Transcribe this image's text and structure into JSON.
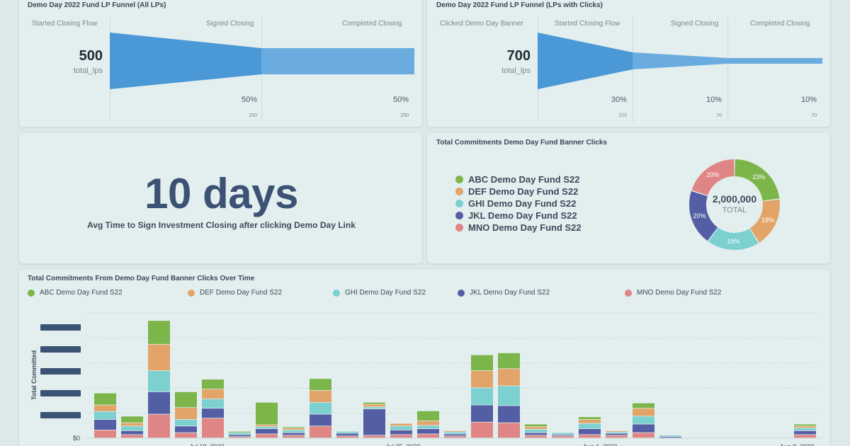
{
  "funnel_all": {
    "title": "Demo Day 2022 Fund LP Funnel (All LPs)",
    "big_value": "500",
    "big_label": "total_lps",
    "stages": [
      {
        "label": "Started Closing Flow",
        "pct": "",
        "count": "",
        "value": 500
      },
      {
        "label": "Signed Closing",
        "pct": "50%",
        "count": "250",
        "value": 250
      },
      {
        "label": "Completed Closing",
        "pct": "50%",
        "count": "250",
        "value": 250
      }
    ]
  },
  "funnel_clicks": {
    "title": "Demo Day 2022 Fund LP Funnel (LPs with Clicks)",
    "big_value": "700",
    "big_label": "total_lps",
    "stages": [
      {
        "label": "Clicked Demo Day Banner",
        "pct": "",
        "count": "",
        "value": 700
      },
      {
        "label": "Started Closing Flow",
        "pct": "30%",
        "count": "210",
        "value": 210
      },
      {
        "label": "Signed Closing",
        "pct": "10%",
        "count": "70",
        "value": 70
      },
      {
        "label": "Completed Closing",
        "pct": "10%",
        "count": "70",
        "value": 70
      }
    ]
  },
  "avg_time": {
    "value": "10 days",
    "label": "Avg Time to Sign Investment Closing after clicking Demo Day Link"
  },
  "donut": {
    "title": "Total Commitments Demo Day Fund Banner Clicks",
    "total_value": "2,000,000",
    "total_label": "TOTAL",
    "legend": [
      {
        "label": "ABC Demo Day Fund S22",
        "color": "#7cb54a"
      },
      {
        "label": "DEF Demo Day Fund S22",
        "color": "#e2a468"
      },
      {
        "label": "GHI Demo Day Fund S22",
        "color": "#7cd0d0"
      },
      {
        "label": "JKL Demo Day Fund S22",
        "color": "#545ea5"
      },
      {
        "label": "MNO Demo Day Fund S22",
        "color": "#e08585"
      }
    ],
    "slices": [
      {
        "name": "ABC Demo Day Fund S22",
        "value": 23,
        "label": "23%"
      },
      {
        "name": "DEF Demo Day Fund S22",
        "value": 18,
        "label": "18%"
      },
      {
        "name": "GHI Demo Day Fund S22",
        "value": 19,
        "label": "19%"
      },
      {
        "name": "JKL Demo Day Fund S22",
        "value": 20,
        "label": "20%"
      },
      {
        "name": "MNO Demo Day Fund S22",
        "value": 20,
        "label": "20%"
      }
    ]
  },
  "bar_chart_card": {
    "title": "Total Commitments From Demo Day Fund Banner Clicks Over Time",
    "ylabel": "Total Committed",
    "y_zero_label": "$0",
    "x_tick_labels": [
      "Jul 18, 2022",
      "Jul 25, 2022",
      "Aug 1, 2022",
      "Aug 8, 2022"
    ]
  },
  "chart_data": {
    "type": "bar",
    "stacked": true,
    "title": "Total Commitments From Demo Day Fund Banner Clicks Over Time",
    "ylabel": "Total Committed",
    "ylim": [
      0,
      190
    ],
    "grid": true,
    "legend_position": "top",
    "series": [
      {
        "name": "MNO Demo Day Fund S22",
        "color": "#e08585",
        "values": [
          12,
          5,
          36,
          8,
          30,
          2,
          6,
          4,
          18,
          3,
          4,
          5,
          6,
          3,
          24,
          23,
          4,
          3,
          5,
          4,
          8,
          0,
          0,
          0,
          0,
          0,
          5
        ]
      },
      {
        "name": "JKL Demo Day Fund S22",
        "color": "#545ea5",
        "values": [
          16,
          6,
          34,
          10,
          15,
          3,
          8,
          4,
          18,
          4,
          40,
          7,
          8,
          3,
          26,
          26,
          4,
          2,
          9,
          3,
          13,
          2,
          0,
          0,
          0,
          0,
          6
        ]
      },
      {
        "name": "GHI Demo Day Fund S22",
        "color": "#7cd0d0",
        "values": [
          12,
          7,
          32,
          10,
          14,
          3,
          3,
          4,
          18,
          3,
          3,
          6,
          5,
          3,
          26,
          30,
          5,
          3,
          8,
          2,
          12,
          2,
          0,
          0,
          0,
          0,
          4
        ]
      },
      {
        "name": "DEF Demo Day Fund S22",
        "color": "#e2a468",
        "values": [
          10,
          5,
          40,
          18,
          15,
          0,
          3,
          3,
          18,
          0,
          4,
          4,
          7,
          2,
          26,
          26,
          4,
          0,
          6,
          2,
          12,
          0,
          0,
          0,
          0,
          0,
          3
        ]
      },
      {
        "name": "ABC Demo Day Fund S22",
        "color": "#7cb54a",
        "values": [
          18,
          10,
          36,
          24,
          15,
          2,
          34,
          2,
          18,
          0,
          3,
          0,
          15,
          0,
          24,
          24,
          4,
          0,
          4,
          0,
          8,
          0,
          0,
          0,
          0,
          0,
          3
        ]
      }
    ],
    "redacted_y_ticks": 5
  }
}
